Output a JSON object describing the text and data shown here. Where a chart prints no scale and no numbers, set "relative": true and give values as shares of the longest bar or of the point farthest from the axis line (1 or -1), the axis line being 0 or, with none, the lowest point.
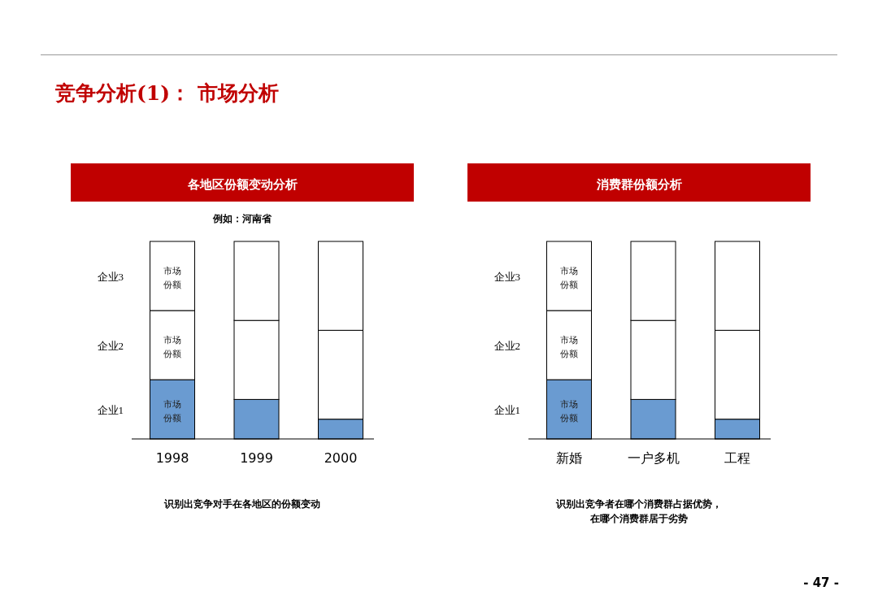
{
  "chart_data": [
    {
      "type": "bar",
      "stacked": true,
      "relative": true,
      "title": "各地区份额变动分析",
      "subtitle": "例如：河南省",
      "categories": [
        "1998",
        "1999",
        "2000"
      ],
      "series": [
        {
          "name": "企业1",
          "color": "#6a9bd1",
          "values": [
            0.3,
            0.2,
            0.1
          ]
        },
        {
          "name": "企业2",
          "color": "#ffffff",
          "values": [
            0.35,
            0.4,
            0.45
          ]
        },
        {
          "name": "企业3",
          "color": "#ffffff",
          "values": [
            0.35,
            0.4,
            0.45
          ]
        }
      ],
      "annotations": [
        "市场份额",
        "市场份额",
        "市场份额",
        "识别出竞争对手在各地区的份额变动",
        "竞争分析(1)： 市场分析",
        "- 47 -"
      ]
    },
    {
      "type": "bar",
      "stacked": true,
      "relative": true,
      "title": "消费群份额分析",
      "categories": [
        "新婚",
        "一户多机",
        "工程"
      ],
      "series": [
        {
          "name": "企业1",
          "color": "#6a9bd1",
          "values": [
            0.3,
            0.2,
            0.1
          ]
        },
        {
          "name": "企业2",
          "color": "#ffffff",
          "values": [
            0.35,
            0.4,
            0.45
          ]
        },
        {
          "name": "企业3",
          "color": "#ffffff",
          "values": [
            0.35,
            0.4,
            0.45
          ]
        }
      ],
      "annotations": [
        "市场份额",
        "市场份额",
        "市场份额",
        "识别出竞争者在哪个消费群占据优势，在哪个消费群居于劣势"
      ]
    }
  ]
}
